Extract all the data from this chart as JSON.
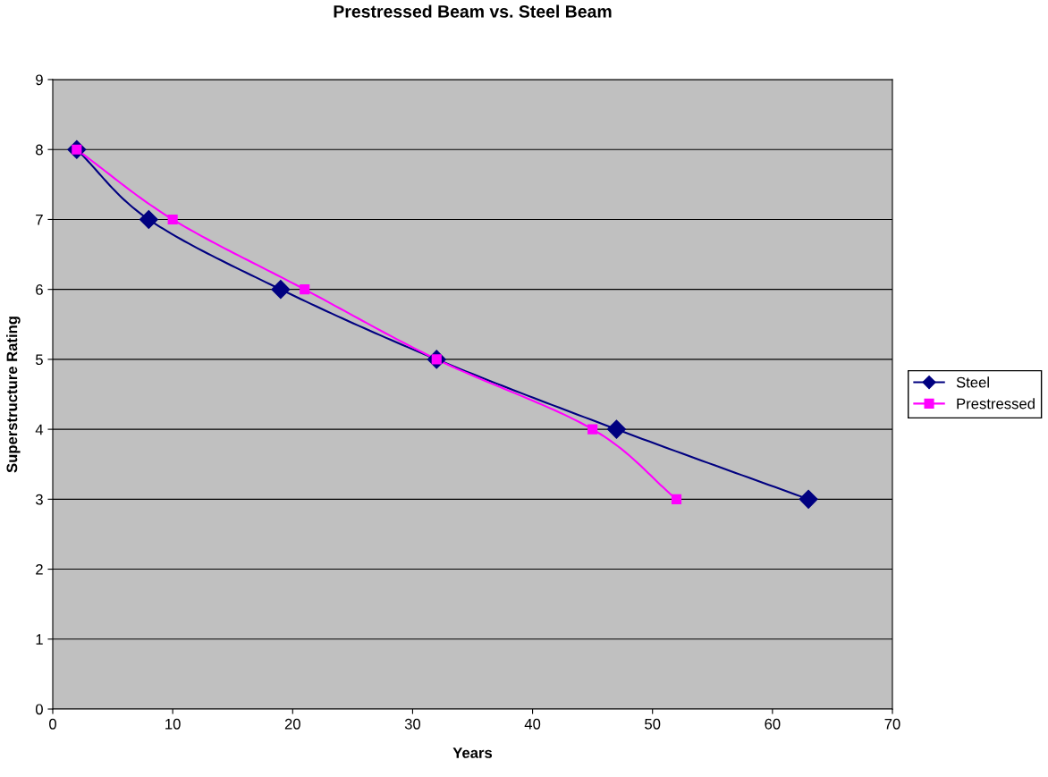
{
  "chart_data": {
    "type": "line",
    "title": "Prestressed Beam vs. Steel Beam",
    "xlabel": "Years",
    "ylabel": "Superstructure Rating",
    "xlim": [
      0,
      70
    ],
    "xticks": [
      0,
      10,
      20,
      30,
      40,
      50,
      60,
      70
    ],
    "ylim": [
      0,
      9
    ],
    "yticks": [
      0,
      1,
      2,
      3,
      4,
      5,
      6,
      7,
      8,
      9
    ],
    "grid": "y",
    "legend": "right",
    "line_style": "solid",
    "series": [
      {
        "name": "Steel",
        "color": "#000080",
        "marker": "diamond",
        "x": [
          2,
          8,
          19,
          32,
          47,
          63
        ],
        "values": [
          8,
          7,
          6,
          5,
          4,
          3
        ]
      },
      {
        "name": "Prestressed",
        "color": "#ff00ff",
        "marker": "square",
        "x": [
          2,
          10,
          21,
          32,
          45,
          52
        ],
        "values": [
          8,
          7,
          6,
          5,
          4,
          3
        ]
      }
    ]
  }
}
